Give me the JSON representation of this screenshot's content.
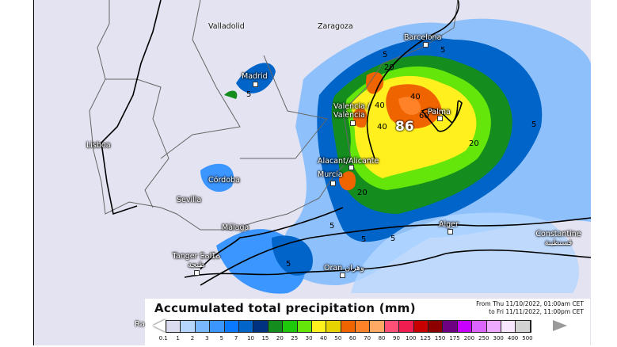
{
  "map": {
    "max_value": "86",
    "contour_labels": [
      "5",
      "5",
      "5",
      "20",
      "20",
      "20",
      "40",
      "40",
      "40",
      "60",
      "5",
      "5",
      "5",
      "5",
      "5"
    ],
    "cities": [
      {
        "name": "Valladolid"
      },
      {
        "name": "Zaragoza"
      },
      {
        "name": "Barcelona"
      },
      {
        "name": "Madrid"
      },
      {
        "name": "Valencia / València"
      },
      {
        "name": "Palma"
      },
      {
        "name": "Lisboa"
      },
      {
        "name": "Córdoba"
      },
      {
        "name": "Sevilla"
      },
      {
        "name": "Alacant/Alicante"
      },
      {
        "name": "Murcia"
      },
      {
        "name": "Málaga"
      },
      {
        "name": "Alger"
      },
      {
        "name": "Constantine قسنطينة"
      },
      {
        "name": "Tanger ⵟⴰⵏⵊⴰ طنجة"
      },
      {
        "name": "Oran وهران"
      }
    ]
  },
  "legend": {
    "title": "Accumulated total precipitation (mm)",
    "period_line1": "From Thu 11/10/2022, 01:00am CET",
    "period_line2": "to Fri 11/11/2022, 11:00pm CET",
    "left_label": "Ra",
    "ticks": [
      "0.1",
      "1",
      "2",
      "3",
      "5",
      "7",
      "10",
      "15",
      "20",
      "25",
      "30",
      "40",
      "50",
      "60",
      "70",
      "80",
      "90",
      "100",
      "125",
      "150",
      "175",
      "200",
      "250",
      "300",
      "400",
      "500"
    ],
    "colors": [
      "#dcdcf0",
      "#b4d6ff",
      "#78b8ff",
      "#3c96ff",
      "#0a78ff",
      "#0064c8",
      "#003282",
      "#148c1e",
      "#1ec80a",
      "#64e60a",
      "#fff01e",
      "#e6d200",
      "#f06400",
      "#ff8228",
      "#ffaa64",
      "#ff5078",
      "#f01e50",
      "#c80000",
      "#8c0000",
      "#6e0082",
      "#c800ff",
      "#dc64ff",
      "#eeaaff",
      "#f8e6ff",
      "#d2d2d2"
    ]
  }
}
